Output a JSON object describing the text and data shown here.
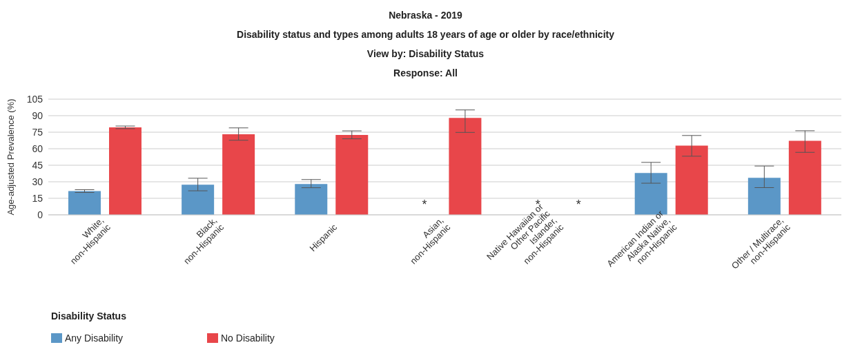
{
  "chart_data": {
    "type": "bar",
    "title": "Nebraska - 2019",
    "subtitle": "Disability status and types among adults 18 years of age or older by race/ethnicity\nView by: Disability Status\nResponse: All",
    "ylabel": "Age-adjusted Prevalence (%)",
    "legend_title": "Disability Status",
    "categories": [
      "White,\nnon-Hispanic",
      "Black,\nnon-Hispanic",
      "Hispanic",
      "Asian,\nnon-Hispanic",
      "Native Hawaiian or\nOther Pacific\nIslander,\nnon-Hispanic",
      "American Indian or\nAlaska Native,\nnon-Hispanic",
      "Other / Multirace,\nnon-Hispanic"
    ],
    "series": [
      {
        "name": "Any Disability",
        "color": "#5b97c7",
        "values": [
          21.6,
          27.3,
          28.0,
          null,
          null,
          37.9,
          33.6
        ],
        "errors": [
          [
            20.3,
            22.8
          ],
          [
            21.8,
            33.2
          ],
          [
            24.6,
            32.0
          ],
          null,
          null,
          [
            28.7,
            47.6
          ],
          [
            24.7,
            44.3
          ]
        ],
        "value_labels": [
          null,
          null,
          null,
          "*",
          "*",
          null,
          null
        ]
      },
      {
        "name": "No Disability",
        "color": "#e8464a",
        "values": [
          79.4,
          73.2,
          72.5,
          88.0,
          null,
          62.8,
          67.2
        ],
        "errors": [
          [
            78.2,
            80.6
          ],
          [
            67.7,
            78.9
          ],
          [
            69.0,
            76.2
          ],
          [
            74.8,
            95.2
          ],
          null,
          [
            53.2,
            72.0
          ],
          [
            56.7,
            76.3
          ]
        ],
        "value_labels": [
          null,
          null,
          null,
          null,
          "*",
          null,
          null
        ]
      }
    ],
    "ylim": [
      0,
      105
    ],
    "yticks": [
      0,
      15,
      30,
      45,
      60,
      75,
      90,
      105
    ],
    "grid": "y",
    "legend": "bottom left"
  }
}
